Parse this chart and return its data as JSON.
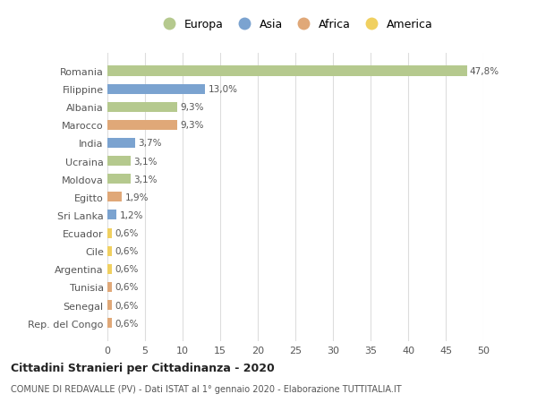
{
  "countries": [
    "Romania",
    "Filippine",
    "Albania",
    "Marocco",
    "India",
    "Ucraina",
    "Moldova",
    "Egitto",
    "Sri Lanka",
    "Ecuador",
    "Cile",
    "Argentina",
    "Tunisia",
    "Senegal",
    "Rep. del Congo"
  ],
  "values": [
    47.8,
    13.0,
    9.3,
    9.3,
    3.7,
    3.1,
    3.1,
    1.9,
    1.2,
    0.6,
    0.6,
    0.6,
    0.6,
    0.6,
    0.6
  ],
  "labels": [
    "47,8%",
    "13,0%",
    "9,3%",
    "9,3%",
    "3,7%",
    "3,1%",
    "3,1%",
    "1,9%",
    "1,2%",
    "0,6%",
    "0,6%",
    "0,6%",
    "0,6%",
    "0,6%",
    "0,6%"
  ],
  "continents": [
    "Europa",
    "Asia",
    "Europa",
    "Africa",
    "Asia",
    "Europa",
    "Europa",
    "Africa",
    "Asia",
    "America",
    "America",
    "America",
    "Africa",
    "Africa",
    "Africa"
  ],
  "continent_colors": {
    "Europa": "#b5c98e",
    "Asia": "#7ba3d0",
    "Africa": "#e0a878",
    "America": "#f0d060"
  },
  "legend_order": [
    "Europa",
    "Asia",
    "Africa",
    "America"
  ],
  "title": "Cittadini Stranieri per Cittadinanza - 2020",
  "subtitle": "COMUNE DI REDAVALLE (PV) - Dati ISTAT al 1° gennaio 2020 - Elaborazione TUTTITALIA.IT",
  "xlim": [
    0,
    50
  ],
  "xticks": [
    0,
    5,
    10,
    15,
    20,
    25,
    30,
    35,
    40,
    45,
    50
  ],
  "background_color": "#ffffff",
  "grid_color": "#dddddd",
  "label_color": "#555555",
  "bar_height": 0.55
}
